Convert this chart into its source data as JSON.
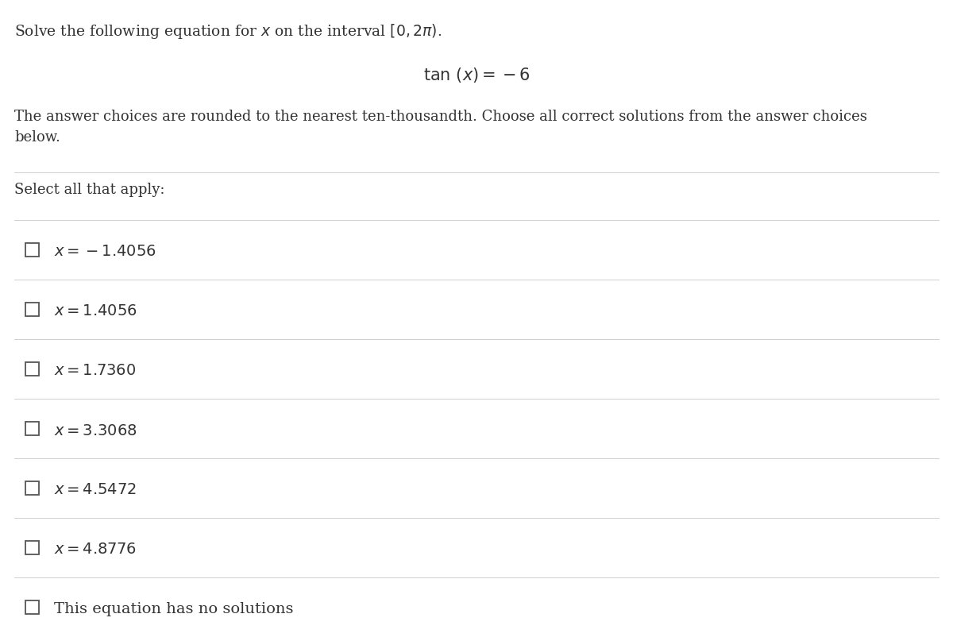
{
  "background_color": "#ffffff",
  "text_color": "#333333",
  "line_color": "#d0d0d0",
  "header_text": "Solve the following equation for $x$ on the interval $[0, 2\\pi)$.",
  "equation": "$\\mathrm{tan}\\ (x) = -6$",
  "description": "The answer choices are rounded to the nearest ten-thousandth. Choose all correct solutions from the answer choices\nbelow.",
  "select_label": "Select all that apply:",
  "choices": [
    "$x = -1.4056$",
    "$x = 1.4056$",
    "$x = 1.7360$",
    "$x = 3.3068$",
    "$x = 4.5472$",
    "$x = 4.8776$",
    "This equation has no solutions"
  ],
  "checkbox_size_pts": 14,
  "font_size_header": 13.5,
  "font_size_equation": 15,
  "font_size_description": 13,
  "font_size_choices": 14,
  "font_size_select": 13
}
